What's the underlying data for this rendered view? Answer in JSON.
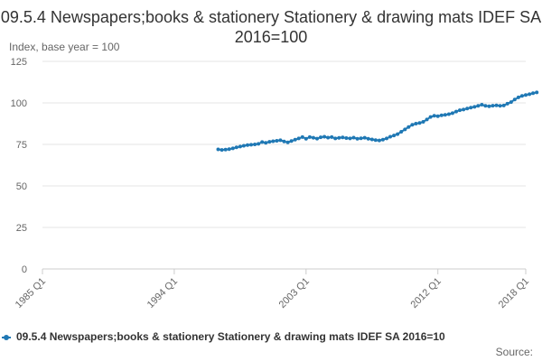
{
  "chart_data": {
    "type": "line",
    "title": "09.5.4 Newspapers;books & stationery Stationery & drawing mats IDEF SA 2016=100",
    "ylabel": "Index, base year = 100",
    "xlabel": "",
    "ylim": [
      0,
      125
    ],
    "yticks": [
      0,
      25,
      50,
      75,
      100,
      125
    ],
    "xticks": [
      "1985 Q1",
      "1994 Q1",
      "2003 Q1",
      "2012 Q1",
      "2018 Q1"
    ],
    "grid": "horizontal",
    "legend": "bottom",
    "series": [
      {
        "name": "09.5.4 Newspapers;books & stationery Stationery & drawing mats IDEF SA 2016=10",
        "color": "#1f78b4",
        "start": "1997 Q1",
        "values": [
          72.0,
          71.7,
          71.9,
          72.1,
          72.6,
          73.2,
          73.7,
          74.2,
          74.6,
          74.8,
          75.0,
          75.3,
          76.4,
          76.0,
          76.6,
          76.9,
          77.2,
          77.5,
          76.8,
          76.2,
          77.0,
          77.8,
          78.6,
          79.4,
          78.4,
          79.4,
          79.0,
          78.5,
          79.3,
          79.6,
          79.1,
          79.4,
          78.6,
          78.9,
          79.2,
          78.8,
          78.6,
          79.1,
          78.4,
          78.7,
          79.0,
          78.4,
          78.0,
          77.6,
          77.4,
          77.9,
          78.6,
          79.6,
          80.4,
          81.2,
          82.6,
          84.0,
          85.5,
          86.8,
          87.5,
          87.9,
          88.6,
          90.0,
          91.5,
          92.3,
          92.0,
          92.5,
          92.8,
          93.2,
          93.8,
          94.8,
          95.6,
          96.0,
          96.6,
          97.2,
          97.6,
          98.2,
          98.9,
          98.2,
          98.0,
          98.3,
          98.5,
          98.2,
          98.4,
          99.5,
          100.5,
          102.0,
          103.3,
          104.2,
          104.8,
          105.2,
          105.8,
          106.3
        ]
      }
    ],
    "source_label": "Source:"
  }
}
